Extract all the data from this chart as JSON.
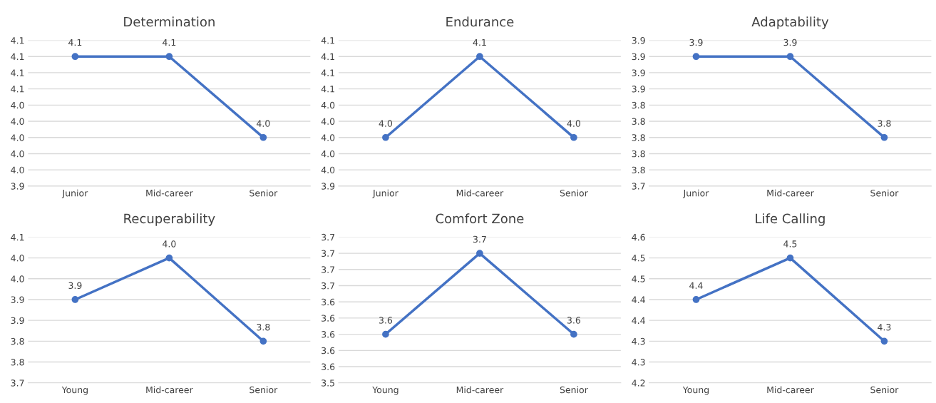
{
  "chart_data": [
    {
      "type": "line",
      "title": "Determination",
      "categories": [
        "Junior",
        "Mid-career",
        "Senior"
      ],
      "series": [
        {
          "color": "#4472c4",
          "values": [
            4.1,
            4.1,
            4.0
          ],
          "value_labels": [
            "4.1",
            "4.1",
            "4.0"
          ]
        }
      ],
      "ylim": [
        3.94,
        4.12
      ],
      "yticks": [
        {
          "value": 3.94,
          "label": "3.9"
        },
        {
          "value": 3.96,
          "label": "4.0"
        },
        {
          "value": 3.98,
          "label": "4.0"
        },
        {
          "value": 4.0,
          "label": "4.0"
        },
        {
          "value": 4.02,
          "label": "4.0"
        },
        {
          "value": 4.04,
          "label": "4.0"
        },
        {
          "value": 4.06,
          "label": "4.1"
        },
        {
          "value": 4.08,
          "label": "4.1"
        },
        {
          "value": 4.1,
          "label": "4.1"
        },
        {
          "value": 4.12,
          "label": "4.1"
        }
      ],
      "grid": "y",
      "marker": "circle",
      "line_style": "solid"
    },
    {
      "type": "line",
      "title": "Endurance",
      "categories": [
        "Junior",
        "Mid-career",
        "Senior"
      ],
      "series": [
        {
          "color": "#4472c4",
          "values": [
            4.0,
            4.1,
            4.0
          ],
          "value_labels": [
            "4.0",
            "4.1",
            "4.0"
          ]
        }
      ],
      "ylim": [
        3.94,
        4.12
      ],
      "yticks": [
        {
          "value": 3.94,
          "label": "3.9"
        },
        {
          "value": 3.96,
          "label": "4.0"
        },
        {
          "value": 3.98,
          "label": "4.0"
        },
        {
          "value": 4.0,
          "label": "4.0"
        },
        {
          "value": 4.02,
          "label": "4.0"
        },
        {
          "value": 4.04,
          "label": "4.0"
        },
        {
          "value": 4.06,
          "label": "4.1"
        },
        {
          "value": 4.08,
          "label": "4.1"
        },
        {
          "value": 4.1,
          "label": "4.1"
        },
        {
          "value": 4.12,
          "label": "4.1"
        }
      ],
      "grid": "y",
      "marker": "circle",
      "line_style": "solid"
    },
    {
      "type": "line",
      "title": "Adaptability",
      "categories": [
        "Junior",
        "Mid-career",
        "Senior"
      ],
      "series": [
        {
          "color": "#4472c4",
          "values": [
            3.9,
            3.9,
            3.8
          ],
          "value_labels": [
            "3.9",
            "3.9",
            "3.8"
          ]
        }
      ],
      "ylim": [
        3.74,
        3.92
      ],
      "yticks": [
        {
          "value": 3.74,
          "label": "3.7"
        },
        {
          "value": 3.76,
          "label": "3.8"
        },
        {
          "value": 3.78,
          "label": "3.8"
        },
        {
          "value": 3.8,
          "label": "3.8"
        },
        {
          "value": 3.82,
          "label": "3.8"
        },
        {
          "value": 3.84,
          "label": "3.8"
        },
        {
          "value": 3.86,
          "label": "3.9"
        },
        {
          "value": 3.88,
          "label": "3.9"
        },
        {
          "value": 3.9,
          "label": "3.9"
        },
        {
          "value": 3.92,
          "label": "3.9"
        }
      ],
      "grid": "y",
      "marker": "circle",
      "line_style": "solid"
    },
    {
      "type": "line",
      "title": "Recuperability",
      "categories": [
        "Young",
        "Mid-career",
        "Senior"
      ],
      "series": [
        {
          "color": "#4472c4",
          "values": [
            3.9,
            4.0,
            3.8
          ],
          "value_labels": [
            "3.9",
            "4.0",
            "3.8"
          ]
        }
      ],
      "ylim": [
        3.7,
        4.05
      ],
      "yticks": [
        {
          "value": 3.7,
          "label": "3.7"
        },
        {
          "value": 3.75,
          "label": "3.8"
        },
        {
          "value": 3.8,
          "label": "3.8"
        },
        {
          "value": 3.85,
          "label": "3.9"
        },
        {
          "value": 3.9,
          "label": "3.9"
        },
        {
          "value": 3.95,
          "label": "4.0"
        },
        {
          "value": 4.0,
          "label": "4.0"
        },
        {
          "value": 4.05,
          "label": "4.1"
        }
      ],
      "grid": "y",
      "marker": "circle",
      "line_style": "solid"
    },
    {
      "type": "line",
      "title": "Comfort Zone",
      "categories": [
        "Young",
        "Mid-career",
        "Senior"
      ],
      "series": [
        {
          "color": "#4472c4",
          "values": [
            3.6,
            3.7,
            3.6
          ],
          "value_labels": [
            "3.6",
            "3.7",
            "3.6"
          ]
        }
      ],
      "ylim": [
        3.54,
        3.72
      ],
      "yticks": [
        {
          "value": 3.54,
          "label": "3.5"
        },
        {
          "value": 3.56,
          "label": "3.6"
        },
        {
          "value": 3.58,
          "label": "3.6"
        },
        {
          "value": 3.6,
          "label": "3.6"
        },
        {
          "value": 3.62,
          "label": "3.6"
        },
        {
          "value": 3.64,
          "label": "3.6"
        },
        {
          "value": 3.66,
          "label": "3.7"
        },
        {
          "value": 3.68,
          "label": "3.7"
        },
        {
          "value": 3.7,
          "label": "3.7"
        },
        {
          "value": 3.72,
          "label": "3.7"
        }
      ],
      "grid": "y",
      "marker": "circle",
      "line_style": "solid"
    },
    {
      "type": "line",
      "title": "Life Calling",
      "categories": [
        "Young",
        "Mid-career",
        "Senior"
      ],
      "series": [
        {
          "color": "#4472c4",
          "values": [
            4.4,
            4.5,
            4.3
          ],
          "value_labels": [
            "4.4",
            "4.5",
            "4.3"
          ]
        }
      ],
      "ylim": [
        4.2,
        4.55
      ],
      "yticks": [
        {
          "value": 4.2,
          "label": "4.2"
        },
        {
          "value": 4.25,
          "label": "4.3"
        },
        {
          "value": 4.3,
          "label": "4.3"
        },
        {
          "value": 4.35,
          "label": "4.4"
        },
        {
          "value": 4.4,
          "label": "4.4"
        },
        {
          "value": 4.45,
          "label": "4.5"
        },
        {
          "value": 4.5,
          "label": "4.5"
        },
        {
          "value": 4.55,
          "label": "4.6"
        }
      ],
      "grid": "y",
      "marker": "circle",
      "line_style": "solid"
    }
  ]
}
